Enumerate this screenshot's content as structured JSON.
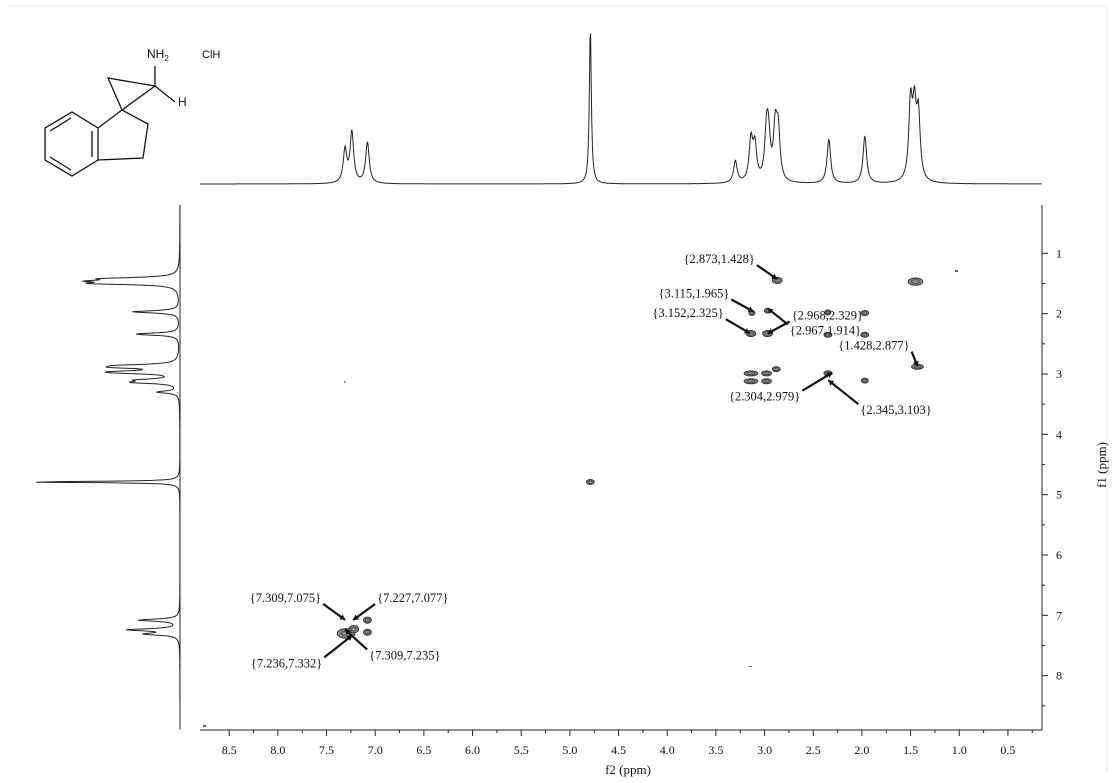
{
  "chart_data": {
    "type": "2d-nmr-cosy",
    "xlabel": "f2 (ppm)",
    "ylabel": "f1 (ppm)",
    "xlim": [
      8.8,
      0.15
    ],
    "ylim": [
      0.2,
      8.9
    ],
    "x_ticks": [
      "8.5",
      "8.0",
      "7.5",
      "7.0",
      "6.5",
      "6.0",
      "5.5",
      "5.0",
      "4.5",
      "4.0",
      "3.5",
      "3.0",
      "2.5",
      "2.0",
      "1.5",
      "1.0",
      "0.5"
    ],
    "y_ticks": [
      "1",
      "2",
      "3",
      "4",
      "5",
      "6",
      "7",
      "8"
    ],
    "projection_peaks": [
      {
        "ppm": 7.31,
        "height": 0.21
      },
      {
        "ppm": 7.24,
        "height": 0.32
      },
      {
        "ppm": 7.08,
        "height": 0.26
      },
      {
        "ppm": 4.79,
        "height": 1.0
      },
      {
        "ppm": 3.3,
        "height": 0.14
      },
      {
        "ppm": 3.14,
        "height": 0.26
      },
      {
        "ppm": 3.1,
        "height": 0.22
      },
      {
        "ppm": 2.98,
        "height": 0.28
      },
      {
        "ppm": 2.96,
        "height": 0.24
      },
      {
        "ppm": 2.89,
        "height": 0.32
      },
      {
        "ppm": 2.86,
        "height": 0.3
      },
      {
        "ppm": 2.34,
        "height": 0.28
      },
      {
        "ppm": 1.97,
        "height": 0.3
      },
      {
        "ppm": 1.5,
        "height": 0.48
      },
      {
        "ppm": 1.46,
        "height": 0.42
      },
      {
        "ppm": 1.42,
        "height": 0.4
      }
    ],
    "cross_peaks": [
      {
        "x": 7.3,
        "y": 7.3,
        "w": 0.18,
        "h": 0.16
      },
      {
        "x": 7.22,
        "y": 7.23,
        "w": 0.1,
        "h": 0.12
      },
      {
        "x": 7.08,
        "y": 7.08,
        "w": 0.08,
        "h": 0.1
      },
      {
        "x": 7.08,
        "y": 7.28,
        "w": 0.08,
        "h": 0.1
      },
      {
        "x": 4.79,
        "y": 4.79,
        "w": 0.08,
        "h": 0.08
      },
      {
        "x": 3.14,
        "y": 2.33,
        "w": 0.1,
        "h": 0.1
      },
      {
        "x": 2.97,
        "y": 2.33,
        "w": 0.1,
        "h": 0.1
      },
      {
        "x": 3.13,
        "y": 1.99,
        "w": 0.06,
        "h": 0.06
      },
      {
        "x": 2.97,
        "y": 1.95,
        "w": 0.06,
        "h": 0.06
      },
      {
        "x": 2.87,
        "y": 1.45,
        "w": 0.1,
        "h": 0.1
      },
      {
        "x": 2.35,
        "y": 2.35,
        "w": 0.08,
        "h": 0.08
      },
      {
        "x": 1.97,
        "y": 1.99,
        "w": 0.08,
        "h": 0.08
      },
      {
        "x": 1.97,
        "y": 2.35,
        "w": 0.08,
        "h": 0.08
      },
      {
        "x": 2.35,
        "y": 1.98,
        "w": 0.06,
        "h": 0.06
      },
      {
        "x": 1.45,
        "y": 1.47,
        "w": 0.15,
        "h": 0.12
      },
      {
        "x": 1.43,
        "y": 2.88,
        "w": 0.12,
        "h": 0.08
      },
      {
        "x": 3.14,
        "y": 2.99,
        "w": 0.14,
        "h": 0.08
      },
      {
        "x": 3.14,
        "y": 3.12,
        "w": 0.14,
        "h": 0.08
      },
      {
        "x": 2.98,
        "y": 2.99,
        "w": 0.1,
        "h": 0.08
      },
      {
        "x": 2.98,
        "y": 3.12,
        "w": 0.1,
        "h": 0.08
      },
      {
        "x": 2.88,
        "y": 2.92,
        "w": 0.08,
        "h": 0.08
      },
      {
        "x": 2.35,
        "y": 2.99,
        "w": 0.08,
        "h": 0.08
      },
      {
        "x": 1.97,
        "y": 3.11,
        "w": 0.07,
        "h": 0.07
      }
    ],
    "annotations": [
      {
        "text": "{2.873,1.428}",
        "x": 2.873,
        "y": 1.428
      },
      {
        "text": "{2.967,1.914}",
        "x": 2.967,
        "y": 1.914
      },
      {
        "text": "{3.115,1.965}",
        "x": 3.115,
        "y": 1.965
      },
      {
        "text": "{3.152,2.325}",
        "x": 3.152,
        "y": 2.325
      },
      {
        "text": "{2.968,2.329}",
        "x": 2.968,
        "y": 2.329
      },
      {
        "text": "{1.428,2.877}",
        "x": 1.428,
        "y": 2.877
      },
      {
        "text": "{2.304,2.979}",
        "x": 2.304,
        "y": 2.979
      },
      {
        "text": "{2.345,3.103}",
        "x": 2.345,
        "y": 3.103
      },
      {
        "text": "{7.309,7.075}",
        "x": 7.309,
        "y": 7.075
      },
      {
        "text": "{7.227,7.077}",
        "x": 7.227,
        "y": 7.077
      },
      {
        "text": "{7.236,7.332}",
        "x": 7.236,
        "y": 7.332
      },
      {
        "text": "{7.309,7.235}",
        "x": 7.309,
        "y": 7.235
      }
    ]
  },
  "structure": {
    "nh2": "NH",
    "nh2_sub": "2",
    "salt": "ClH",
    "h": "H"
  }
}
